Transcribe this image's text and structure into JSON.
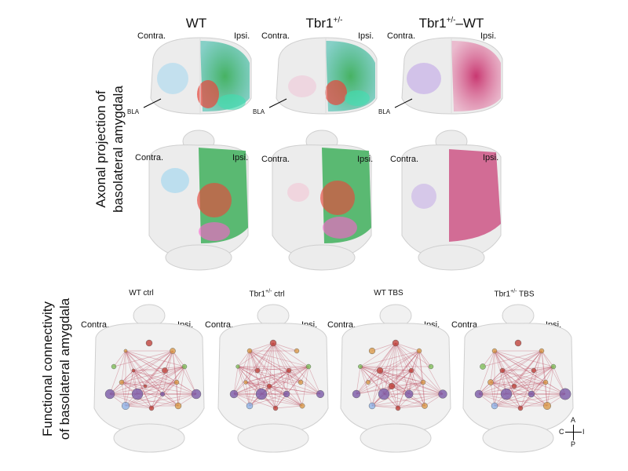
{
  "top": {
    "row_label_line1": "Axonal projection of",
    "row_label_line2": "basolateral amygdala",
    "columns": [
      {
        "title_main": "WT",
        "title_sup": ""
      },
      {
        "title_main": "Tbr1",
        "title_sup": "+/-"
      },
      {
        "title_main": "Tbr1",
        "title_sup": "+/-",
        "title_suffix": "–WT"
      }
    ],
    "contra": "Contra.",
    "ipsi": "Ipsi.",
    "bla": "BLA"
  },
  "bottom": {
    "row_label_line1": "Functional connectivity",
    "row_label_line2": "of basolateral amygdala",
    "panels": [
      {
        "title_main": "WT ctrl",
        "title_sup": "",
        "title_suffix": ""
      },
      {
        "title_main": "Tbr1",
        "title_sup": "+/-",
        "title_suffix": " ctrl"
      },
      {
        "title_main": "WT TBS",
        "title_sup": "",
        "title_suffix": ""
      },
      {
        "title_main": "Tbr1",
        "title_sup": "+/-",
        "title_suffix": " TBS"
      }
    ],
    "contra": "Contra.",
    "ipsi": "Ipsi."
  },
  "compass": {
    "a": "A",
    "p": "P",
    "c": "C",
    "i": "I"
  },
  "colors": {
    "brain_outline": "#cfcfcf",
    "edge": "#b5334a",
    "node_purple": "#7a5aa8",
    "node_red": "#c0443c",
    "node_orange": "#d99a4a",
    "node_green": "#7fbf5a",
    "node_blue": "#8fb2e6"
  }
}
